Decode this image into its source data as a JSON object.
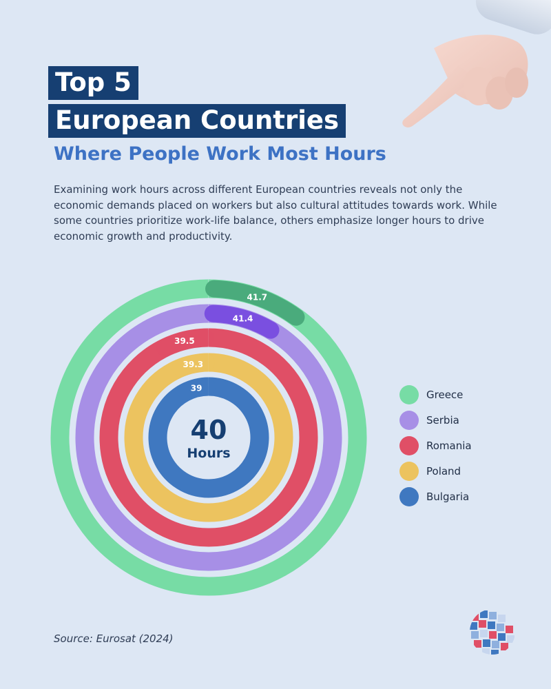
{
  "header": {
    "title_line1": "Top 5",
    "title_line2": "European Countries",
    "subtitle": "Where People Work Most Hours",
    "description": "Examining work hours across different European countries reveals not only the economic demands placed on workers but also cultural attitudes towards work. While some countries prioritize work-life balance, others emphasize longer hours to drive economic growth and productivity."
  },
  "center": {
    "value": "40",
    "unit": "Hours"
  },
  "source": "Source: Eurosat (2024)",
  "colors": {
    "background": "#dde7f4",
    "title_bg": "#163f72",
    "subtitle": "#3d72c4",
    "Greece": "#77dca5",
    "Serbia": "#a78fe6",
    "Romania": "#e04f66",
    "Poland": "#ecc35f",
    "Bulgaria": "#3f78c0"
  },
  "chart_data": {
    "type": "radial bar",
    "center_label": "40 Hours",
    "series": [
      {
        "name": "Greece",
        "value": 41.7,
        "label": "41.7"
      },
      {
        "name": "Serbia",
        "value": 41.4,
        "label": "41.4"
      },
      {
        "name": "Romania",
        "value": 39.5,
        "label": "39.5"
      },
      {
        "name": "Poland",
        "value": 39.3,
        "label": "39.3"
      },
      {
        "name": "Bulgaria",
        "value": 39,
        "label": "39"
      }
    ],
    "legend_position": "right"
  }
}
